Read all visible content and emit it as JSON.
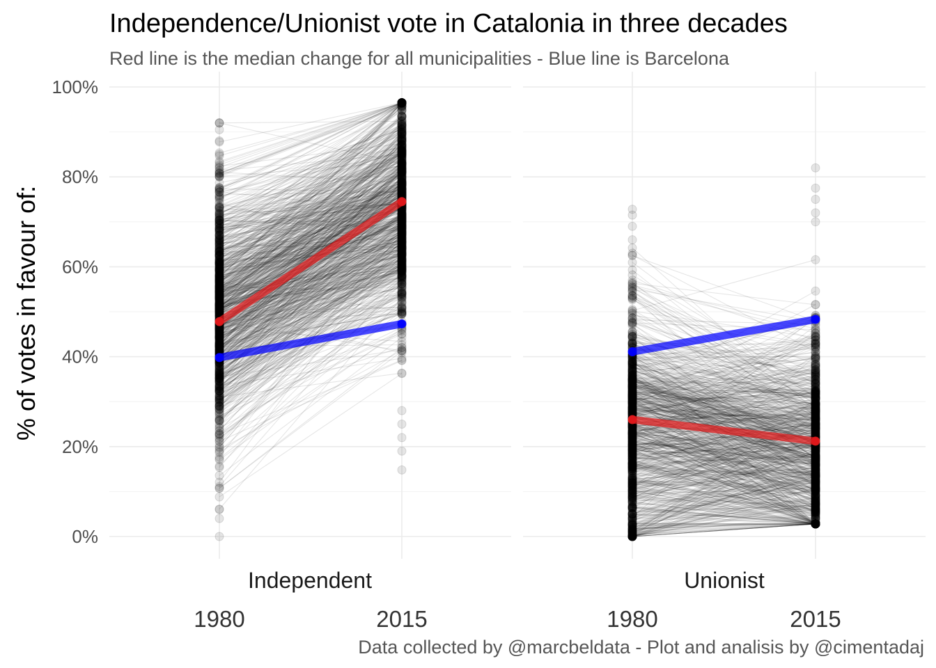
{
  "chart_data": {
    "type": "line",
    "title": "Independence/Unionist vote in Catalonia in three decades",
    "subtitle": "Red line is the median change for all municipalities - Blue line is Barcelona",
    "caption": "Data collected by @marcbeldata - Plot and analisis by @cimentadaj",
    "ylabel": "% of votes in favour of:",
    "ylim": [
      0,
      100
    ],
    "yticks": [
      "0%",
      "20%",
      "40%",
      "60%",
      "80%",
      "100%"
    ],
    "ytick_values": [
      0,
      20,
      40,
      60,
      80,
      100
    ],
    "x": [
      "1980",
      "2015"
    ],
    "grid": true,
    "legend": "none",
    "colors": {
      "municipality": "#000000",
      "median": "#e41a1c",
      "barcelona": "#0000ff"
    },
    "panels": [
      {
        "label": "Independent",
        "median": [
          47.8,
          74.5
        ],
        "barcelona": [
          39.8,
          47.3
        ],
        "range_1980": [
          0,
          92
        ],
        "range_2015": [
          14.8,
          96.5
        ],
        "highlight_points_1980": [
          92,
          90.5,
          88,
          85,
          82,
          80,
          77,
          6,
          4,
          0
        ],
        "highlight_points_2015": [
          96.5,
          95,
          28,
          25,
          22,
          19,
          14.8
        ]
      },
      {
        "label": "Unionist",
        "median": [
          26.0,
          21.2
        ],
        "barcelona": [
          41.1,
          48.3
        ],
        "range_1980": [
          0,
          72.8
        ],
        "range_2015": [
          2.8,
          82
        ],
        "highlight_points_1980": [
          72.8,
          71.5,
          69,
          66,
          63
        ],
        "highlight_points_2015": [
          82,
          77.5,
          75,
          72,
          70
        ]
      }
    ]
  }
}
